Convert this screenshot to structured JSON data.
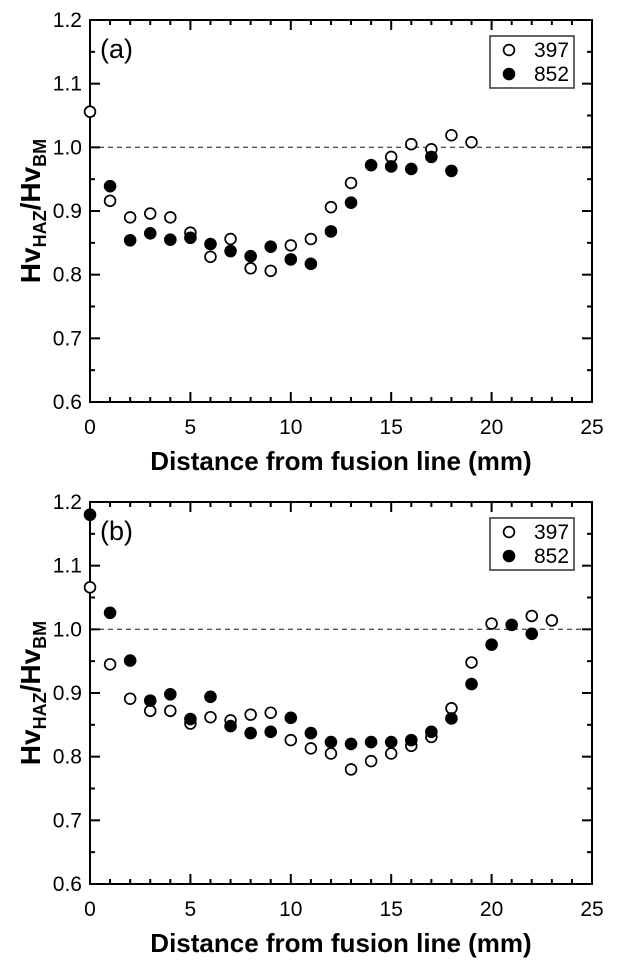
{
  "figure": {
    "background": "#ffffff",
    "ink_color": "#000000",
    "reference_line_color": "#555555"
  },
  "chart_data": [
    {
      "type": "scatter",
      "panel_label": "(a)",
      "xlabel": "Distance from fusion line (mm)",
      "ylabel_parts": [
        {
          "text": "Hv",
          "sub": false
        },
        {
          "text": "HAZ",
          "sub": true
        },
        {
          "text": "/Hv",
          "sub": false
        },
        {
          "text": "BM",
          "sub": true
        }
      ],
      "xlim": [
        0,
        25
      ],
      "ylim": [
        0.6,
        1.2
      ],
      "xticks_major": [
        0,
        5,
        10,
        15,
        20,
        25
      ],
      "xtick_minor_step": 1,
      "yticks_major": [
        0.6,
        0.7,
        0.8,
        0.9,
        1.0,
        1.1,
        1.2
      ],
      "ytick_minor_step": 0.05,
      "grid": false,
      "reference_line_y": 1.0,
      "legend_position": "top-right",
      "series": [
        {
          "name": "397",
          "marker": "open-circle",
          "points": [
            [
              0,
              1.056
            ],
            [
              1,
              0.916
            ],
            [
              2,
              0.89
            ],
            [
              3,
              0.896
            ],
            [
              4,
              0.89
            ],
            [
              5,
              0.866
            ],
            [
              6,
              0.828
            ],
            [
              7,
              0.856
            ],
            [
              8,
              0.81
            ],
            [
              9,
              0.806
            ],
            [
              10,
              0.846
            ],
            [
              11,
              0.856
            ],
            [
              12,
              0.906
            ],
            [
              13,
              0.944
            ],
            [
              15,
              0.985
            ],
            [
              16,
              1.005
            ],
            [
              17,
              0.997
            ],
            [
              18,
              1.019
            ],
            [
              19,
              1.008
            ]
          ]
        },
        {
          "name": "852",
          "marker": "filled-circle",
          "points": [
            [
              1,
              0.939
            ],
            [
              2,
              0.854
            ],
            [
              3,
              0.865
            ],
            [
              4,
              0.855
            ],
            [
              5,
              0.858
            ],
            [
              6,
              0.848
            ],
            [
              7,
              0.837
            ],
            [
              8,
              0.829
            ],
            [
              9,
              0.844
            ],
            [
              10,
              0.824
            ],
            [
              11,
              0.817
            ],
            [
              12,
              0.868
            ],
            [
              13,
              0.913
            ],
            [
              14,
              0.972
            ],
            [
              15,
              0.97
            ],
            [
              16,
              0.966
            ],
            [
              17,
              0.985
            ],
            [
              18,
              0.963
            ]
          ]
        }
      ]
    },
    {
      "type": "scatter",
      "panel_label": "(b)",
      "xlabel": "Distance from fusion line (mm)",
      "ylabel_parts": [
        {
          "text": "Hv",
          "sub": false
        },
        {
          "text": "HAZ",
          "sub": true
        },
        {
          "text": "/Hv",
          "sub": false
        },
        {
          "text": "BM",
          "sub": true
        }
      ],
      "xlim": [
        0,
        25
      ],
      "ylim": [
        0.6,
        1.2
      ],
      "xticks_major": [
        0,
        5,
        10,
        15,
        20,
        25
      ],
      "xtick_minor_step": 1,
      "yticks_major": [
        0.6,
        0.7,
        0.8,
        0.9,
        1.0,
        1.1,
        1.2
      ],
      "ytick_minor_step": 0.05,
      "grid": false,
      "reference_line_y": 1.0,
      "legend_position": "top-right",
      "series": [
        {
          "name": "397",
          "marker": "open-circle",
          "points": [
            [
              0,
              1.066
            ],
            [
              1,
              0.945
            ],
            [
              2,
              0.891
            ],
            [
              3,
              0.872
            ],
            [
              4,
              0.872
            ],
            [
              5,
              0.852
            ],
            [
              6,
              0.862
            ],
            [
              7,
              0.857
            ],
            [
              8,
              0.866
            ],
            [
              9,
              0.869
            ],
            [
              10,
              0.826
            ],
            [
              11,
              0.813
            ],
            [
              12,
              0.805
            ],
            [
              13,
              0.78
            ],
            [
              14,
              0.793
            ],
            [
              15,
              0.805
            ],
            [
              16,
              0.817
            ],
            [
              17,
              0.831
            ],
            [
              18,
              0.876
            ],
            [
              19,
              0.948
            ],
            [
              20,
              1.009
            ],
            [
              22,
              1.021
            ],
            [
              23,
              1.014
            ]
          ]
        },
        {
          "name": "852",
          "marker": "filled-circle",
          "points": [
            [
              0,
              1.18
            ],
            [
              1,
              1.026
            ],
            [
              2,
              0.951
            ],
            [
              3,
              0.888
            ],
            [
              4,
              0.898
            ],
            [
              5,
              0.859
            ],
            [
              6,
              0.894
            ],
            [
              7,
              0.848
            ],
            [
              8,
              0.837
            ],
            [
              9,
              0.839
            ],
            [
              10,
              0.861
            ],
            [
              11,
              0.837
            ],
            [
              12,
              0.823
            ],
            [
              13,
              0.82
            ],
            [
              14,
              0.823
            ],
            [
              15,
              0.823
            ],
            [
              16,
              0.826
            ],
            [
              17,
              0.839
            ],
            [
              18,
              0.86
            ],
            [
              19,
              0.914
            ],
            [
              20,
              0.976
            ],
            [
              21,
              1.007
            ],
            [
              22,
              0.993
            ]
          ]
        }
      ]
    }
  ]
}
